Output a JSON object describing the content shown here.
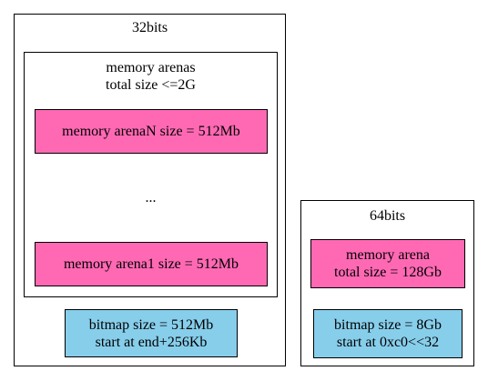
{
  "cluster_32": {
    "title": "32bits",
    "arenas": {
      "title": "memory arenas\ntotal size <=2G",
      "top_node": "memory arenaN size = 512Mb",
      "ellipsis": "...",
      "bottom_node": "memory arena1 size = 512Mb"
    },
    "bitmap": "bitmap size = 512Mb\nstart at end+256Kb"
  },
  "cluster_64": {
    "title": "64bits",
    "arena": "memory arena\ntotal size = 128Gb",
    "bitmap": "bitmap size = 8Gb\nstart at 0xc0<<32"
  },
  "colors": {
    "arena_fill": "#ff69b4",
    "bitmap_fill": "#87ceeb",
    "border": "#000000"
  }
}
